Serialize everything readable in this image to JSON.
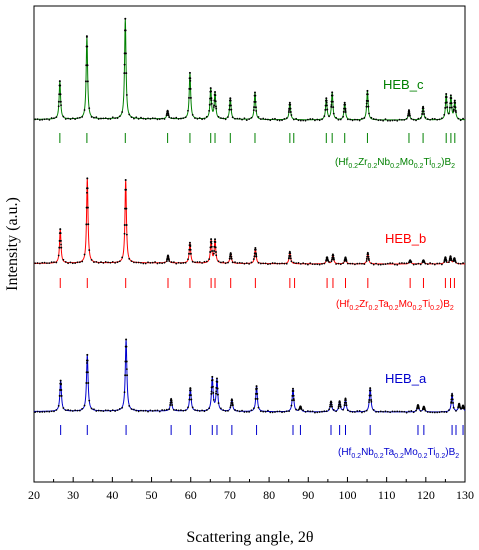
{
  "chart_data": {
    "type": "line",
    "xlabel": "Scattering angle, 2θ",
    "ylabel": "Intensity (a.u.)",
    "xlim": [
      20,
      130
    ],
    "x_ticks": [
      20,
      30,
      40,
      50,
      60,
      70,
      80,
      90,
      100,
      110,
      120,
      130
    ],
    "y_ticks_shown": false,
    "series": [
      {
        "name": "HEB_c",
        "color": "#008000",
        "phase_parts": [
          "(Hf",
          "0.2",
          "Zr",
          "0.2",
          "Nb",
          "0.2",
          "Mo",
          "0.2",
          "Ti",
          "0.2",
          ")B",
          "2"
        ],
        "peaks": [
          {
            "x": 26.6,
            "h": 0.38
          },
          {
            "x": 33.5,
            "h": 0.82
          },
          {
            "x": 43.3,
            "h": 1.0
          },
          {
            "x": 54.1,
            "h": 0.08
          },
          {
            "x": 59.8,
            "h": 0.46
          },
          {
            "x": 65.1,
            "h": 0.3
          },
          {
            "x": 66.2,
            "h": 0.26
          },
          {
            "x": 70.1,
            "h": 0.21
          },
          {
            "x": 76.4,
            "h": 0.27
          },
          {
            "x": 85.3,
            "h": 0.17
          },
          {
            "x": 94.6,
            "h": 0.21
          },
          {
            "x": 96.1,
            "h": 0.27
          },
          {
            "x": 99.3,
            "h": 0.17
          },
          {
            "x": 105.1,
            "h": 0.29
          },
          {
            "x": 115.7,
            "h": 0.09
          },
          {
            "x": 119.3,
            "h": 0.13
          },
          {
            "x": 125.2,
            "h": 0.25
          },
          {
            "x": 126.4,
            "h": 0.23
          },
          {
            "x": 127.4,
            "h": 0.18
          }
        ],
        "ticks": [
          26.6,
          33.5,
          43.3,
          54.1,
          59.8,
          65.1,
          66.2,
          70.1,
          76.4,
          85.3,
          86.3,
          94.6,
          96.1,
          99.3,
          105.1,
          115.7,
          119.3,
          125.2,
          126.4,
          127.4
        ]
      },
      {
        "name": "HEB_b",
        "color": "#ff0000",
        "phase_parts": [
          "(Hf",
          "0.2",
          "Zr",
          "0.2",
          "Ta",
          "0.2",
          "Mo",
          "0.2",
          "Ti",
          "0.2",
          ")B",
          "2"
        ],
        "peaks": [
          {
            "x": 26.7,
            "h": 0.37
          },
          {
            "x": 33.6,
            "h": 0.92
          },
          {
            "x": 43.4,
            "h": 0.9
          },
          {
            "x": 54.2,
            "h": 0.08
          },
          {
            "x": 59.8,
            "h": 0.22
          },
          {
            "x": 65.2,
            "h": 0.25
          },
          {
            "x": 66.2,
            "h": 0.25
          },
          {
            "x": 70.2,
            "h": 0.11
          },
          {
            "x": 76.5,
            "h": 0.17
          },
          {
            "x": 85.3,
            "h": 0.13
          },
          {
            "x": 94.8,
            "h": 0.07
          },
          {
            "x": 96.3,
            "h": 0.1
          },
          {
            "x": 99.5,
            "h": 0.07
          },
          {
            "x": 105.2,
            "h": 0.12
          },
          {
            "x": 116.0,
            "h": 0.04
          },
          {
            "x": 119.4,
            "h": 0.04
          },
          {
            "x": 125.0,
            "h": 0.07
          },
          {
            "x": 126.3,
            "h": 0.08
          },
          {
            "x": 127.3,
            "h": 0.06
          }
        ],
        "ticks": [
          26.7,
          33.6,
          43.4,
          54.2,
          59.8,
          65.2,
          66.2,
          70.2,
          76.5,
          85.3,
          86.5,
          94.8,
          96.3,
          99.5,
          105.2,
          116.0,
          119.4,
          125.0,
          126.3,
          127.3
        ]
      },
      {
        "name": "HEB_a",
        "color": "#0000cd",
        "phase_parts": [
          "(Hf",
          "0.2",
          "Nb",
          "0.2",
          "Ta",
          "0.2",
          "Mo",
          "0.2",
          "Ti",
          "0.2",
          ")B",
          "2"
        ],
        "peaks": [
          {
            "x": 26.8,
            "h": 0.36
          },
          {
            "x": 33.6,
            "h": 0.66
          },
          {
            "x": 43.5,
            "h": 0.84
          },
          {
            "x": 55.0,
            "h": 0.14
          },
          {
            "x": 59.9,
            "h": 0.27
          },
          {
            "x": 65.5,
            "h": 0.39
          },
          {
            "x": 66.7,
            "h": 0.37
          },
          {
            "x": 70.5,
            "h": 0.14
          },
          {
            "x": 76.8,
            "h": 0.3
          },
          {
            "x": 86.1,
            "h": 0.27
          },
          {
            "x": 88.0,
            "h": 0.06
          },
          {
            "x": 95.8,
            "h": 0.12
          },
          {
            "x": 98.0,
            "h": 0.12
          },
          {
            "x": 99.5,
            "h": 0.15
          },
          {
            "x": 105.8,
            "h": 0.28
          },
          {
            "x": 118.0,
            "h": 0.08
          },
          {
            "x": 119.5,
            "h": 0.06
          },
          {
            "x": 126.7,
            "h": 0.21
          },
          {
            "x": 128.5,
            "h": 0.09
          },
          {
            "x": 129.5,
            "h": 0.07
          }
        ],
        "ticks": [
          26.8,
          33.6,
          43.5,
          55.0,
          59.9,
          65.5,
          66.7,
          70.5,
          76.8,
          86.1,
          88.0,
          95.8,
          98.0,
          99.5,
          105.8,
          118.0,
          119.5,
          126.7,
          127.7,
          129.5
        ]
      }
    ]
  }
}
